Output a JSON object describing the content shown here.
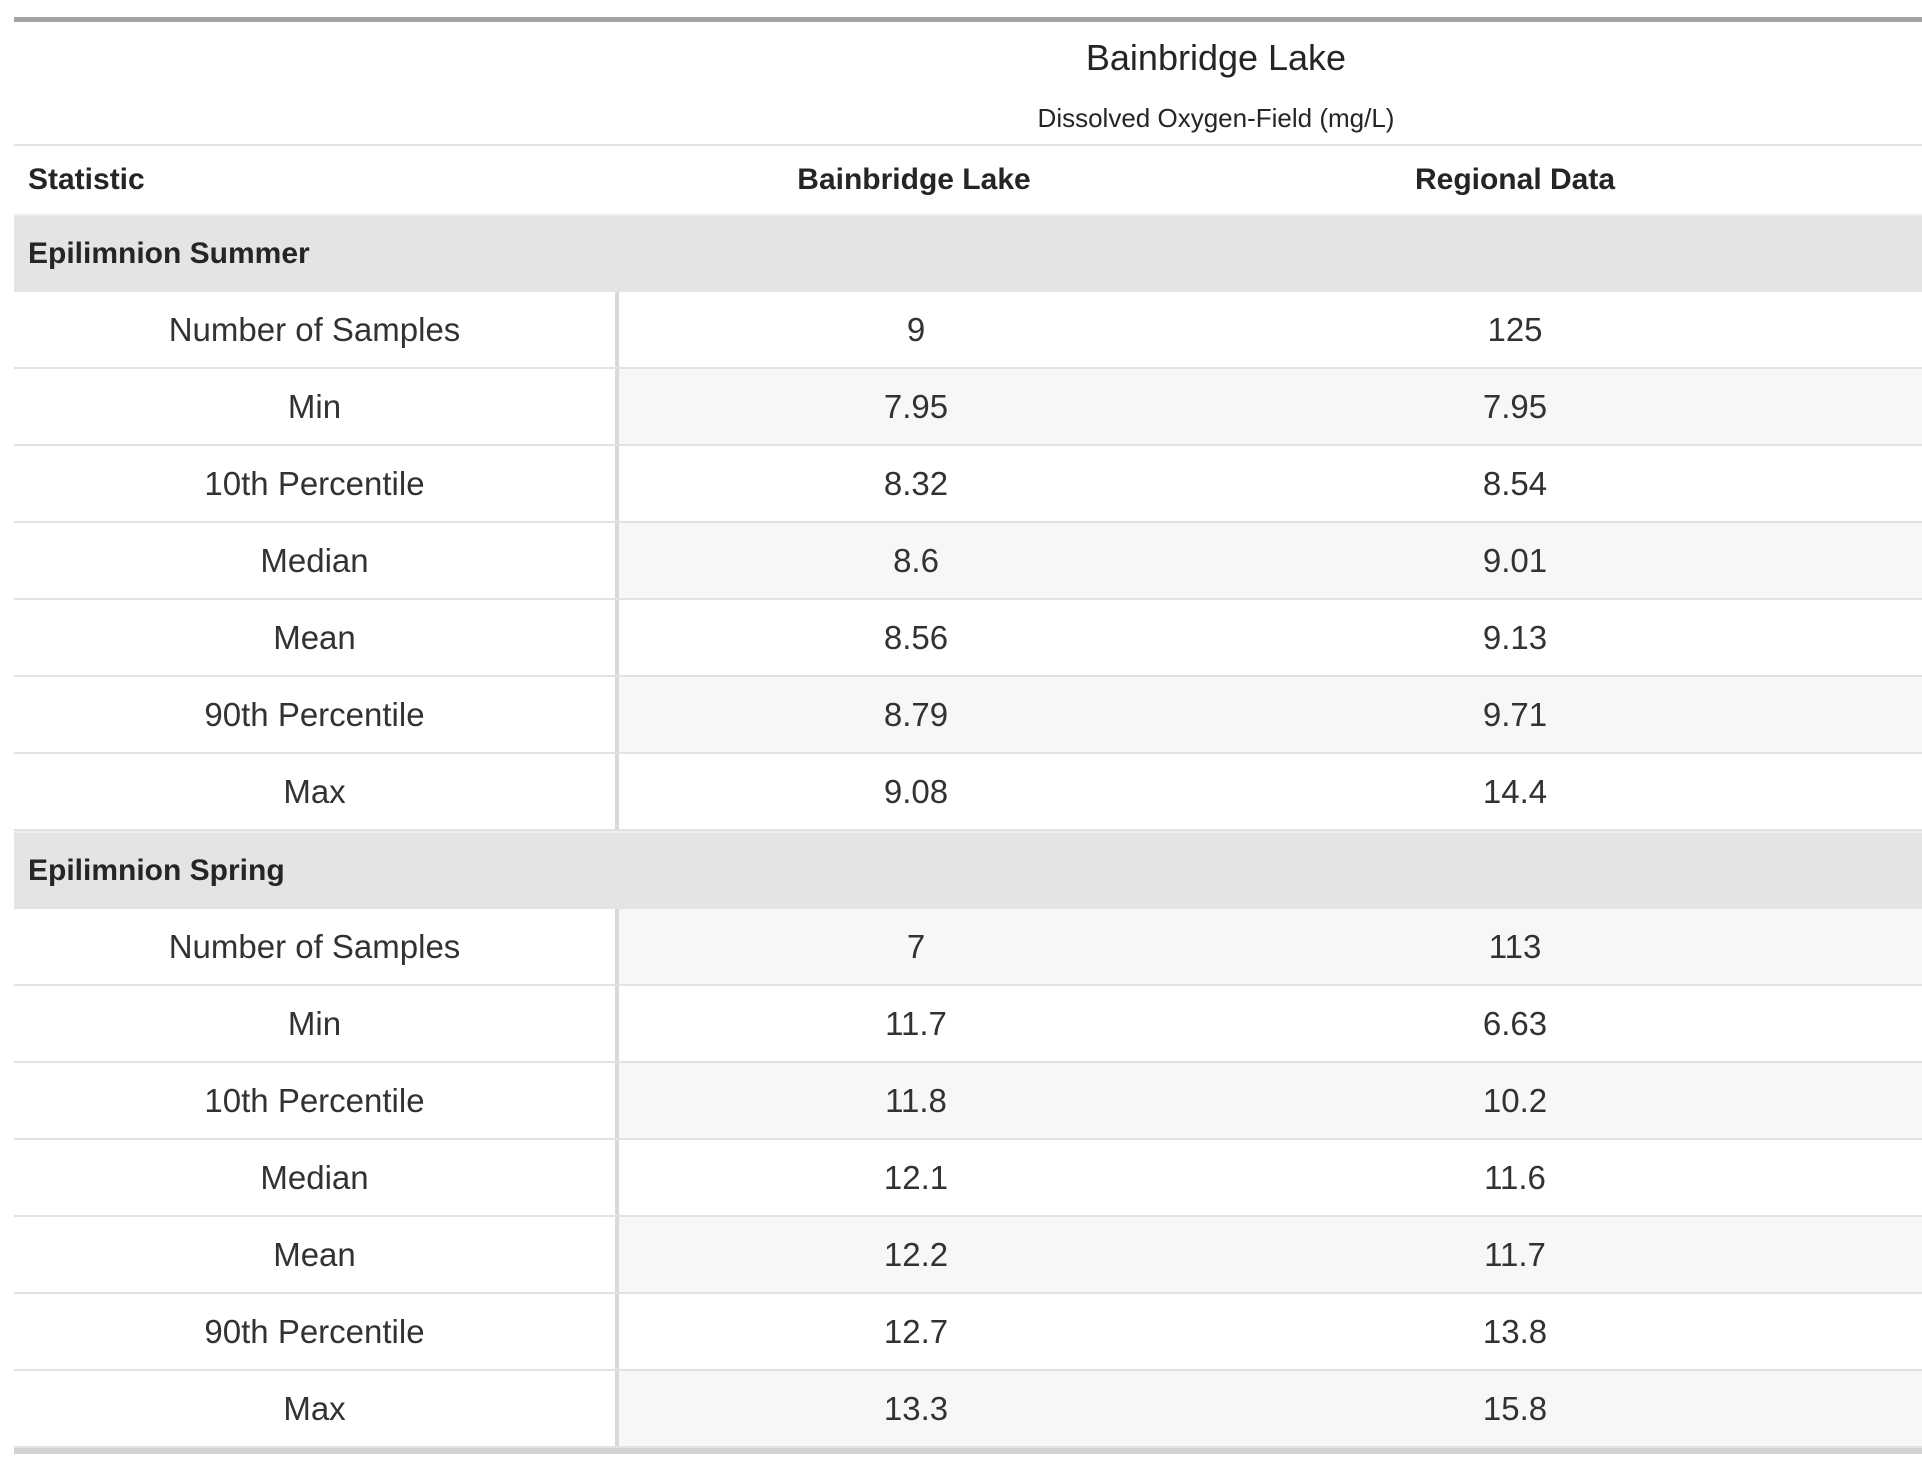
{
  "title": "Bainbridge Lake",
  "subtitle": "Dissolved Oxygen-Field (mg/L)",
  "columns": [
    "Statistic",
    "Bainbridge Lake",
    "Regional Data"
  ],
  "sections": [
    {
      "label": "Epilimnion Summer",
      "rows": [
        {
          "statistic": "Number of Samples",
          "values": [
            "9",
            "125"
          ]
        },
        {
          "statistic": "Min",
          "values": [
            "7.95",
            "7.95"
          ]
        },
        {
          "statistic": "10th Percentile",
          "values": [
            "8.32",
            "8.54"
          ]
        },
        {
          "statistic": "Median",
          "values": [
            "8.6",
            "9.01"
          ]
        },
        {
          "statistic": "Mean",
          "values": [
            "8.56",
            "9.13"
          ]
        },
        {
          "statistic": "90th Percentile",
          "values": [
            "8.79",
            "9.71"
          ]
        },
        {
          "statistic": "Max",
          "values": [
            "9.08",
            "14.4"
          ]
        }
      ]
    },
    {
      "label": "Epilimnion Spring",
      "rows": [
        {
          "statistic": "Number of Samples",
          "values": [
            "7",
            "113"
          ]
        },
        {
          "statistic": "Min",
          "values": [
            "11.7",
            "6.63"
          ]
        },
        {
          "statistic": "10th Percentile",
          "values": [
            "11.8",
            "10.2"
          ]
        },
        {
          "statistic": "Median",
          "values": [
            "12.1",
            "11.6"
          ]
        },
        {
          "statistic": "Mean",
          "values": [
            "12.2",
            "11.7"
          ]
        },
        {
          "statistic": "90th Percentile",
          "values": [
            "12.7",
            "13.8"
          ]
        },
        {
          "statistic": "Max",
          "values": [
            "13.3",
            "15.8"
          ]
        }
      ]
    }
  ],
  "colors": {
    "top_rule": "#a4a4a4",
    "bottom_rule": "#d2d2d2",
    "section_band": "#e4e4e4",
    "stripe": "#f7f7f7",
    "row_border": "#e2e2e2",
    "column_divider": "#d9d9d9",
    "text": "#323232",
    "heading_text": "#252525"
  },
  "chart_data": {
    "type": "table",
    "title": "Bainbridge Lake",
    "subtitle": "Dissolved Oxygen-Field (mg/L)",
    "columns": [
      "Statistic",
      "Bainbridge Lake",
      "Regional Data"
    ],
    "groups": [
      {
        "group": "Epilimnion Summer",
        "rows": [
          [
            "Number of Samples",
            9,
            125
          ],
          [
            "Min",
            7.95,
            7.95
          ],
          [
            "10th Percentile",
            8.32,
            8.54
          ],
          [
            "Median",
            8.6,
            9.01
          ],
          [
            "Mean",
            8.56,
            9.13
          ],
          [
            "90th Percentile",
            8.79,
            9.71
          ],
          [
            "Max",
            9.08,
            14.4
          ]
        ]
      },
      {
        "group": "Epilimnion Spring",
        "rows": [
          [
            "Number of Samples",
            7,
            113
          ],
          [
            "Min",
            11.7,
            6.63
          ],
          [
            "10th Percentile",
            11.8,
            10.2
          ],
          [
            "Median",
            12.1,
            11.6
          ],
          [
            "Mean",
            12.2,
            11.7
          ],
          [
            "90th Percentile",
            12.7,
            13.8
          ],
          [
            "Max",
            13.3,
            15.8
          ]
        ]
      }
    ]
  }
}
